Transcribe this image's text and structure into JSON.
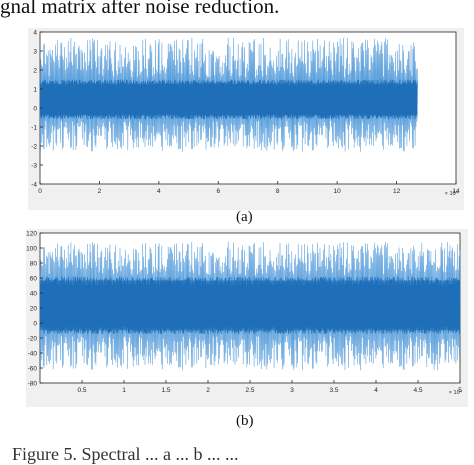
{
  "header_text": "gnal matrix after noise reduction.",
  "footer_text": "Figure 5. Spectral ... a ... b ... ...",
  "chart_data": [
    {
      "type": "line",
      "panel_label": "(a)",
      "title": "",
      "xlabel": "",
      "ylabel": "",
      "x_range": [
        0,
        127000
      ],
      "x_exponent_label": "× 10⁴",
      "xlim": [
        0,
        14
      ],
      "ylim": [
        -4,
        4
      ],
      "x_ticks": [
        0,
        2,
        4,
        6,
        8,
        10,
        12,
        14
      ],
      "y_ticks": [
        -4,
        -3,
        -2,
        -1,
        0,
        1,
        2,
        3,
        4
      ],
      "signal": {
        "mean": 0.4,
        "core_band": [
          -0.6,
          1.5
        ],
        "peak_band": [
          -2.3,
          3.7
        ]
      },
      "grid": false,
      "color": "#2f7fc8"
    },
    {
      "type": "line",
      "panel_label": "(b)",
      "title": "",
      "xlabel": "",
      "ylabel": "",
      "x_range": [
        0,
        50000
      ],
      "x_exponent_label": "× 10⁴",
      "xlim": [
        0,
        5
      ],
      "ylim": [
        -80,
        120
      ],
      "x_ticks": [
        0.5,
        1,
        1.5,
        2,
        2.5,
        3,
        3.5,
        4,
        4.5,
        5
      ],
      "y_ticks": [
        -80,
        -60,
        -40,
        -20,
        0,
        20,
        40,
        60,
        80,
        100,
        120
      ],
      "signal": {
        "mean": 20,
        "core_band": [
          -15,
          62
        ],
        "peak_band": [
          -63,
          108
        ]
      },
      "grid": false,
      "color": "#2f7fc8"
    }
  ]
}
